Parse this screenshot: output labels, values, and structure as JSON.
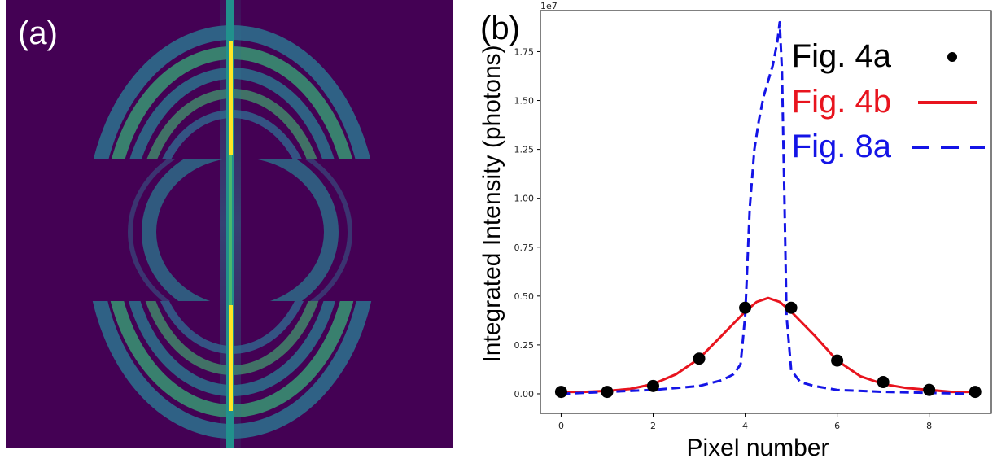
{
  "panel_a": {
    "label": "(a)",
    "colors": {
      "background": "#440154",
      "ring_mid": "#2a788e",
      "ring_bright": "#3fbc73",
      "streak": "#fde725"
    }
  },
  "panel_b": {
    "label": "(b)"
  },
  "chart_data": {
    "type": "line",
    "xlabel": "Pixel number",
    "ylabel": "Integrated Intensity (photons)",
    "y_multiplier_label": "1e7",
    "xlim": [
      -0.45,
      9.35
    ],
    "ylim": [
      -0.1,
      1.96
    ],
    "x_ticks": [
      {
        "value": 0,
        "label": "0"
      },
      {
        "value": 2,
        "label": "2"
      },
      {
        "value": 4,
        "label": "4"
      },
      {
        "value": 6,
        "label": "6"
      },
      {
        "value": 8,
        "label": "8"
      }
    ],
    "y_ticks": [
      {
        "value": 0.0,
        "label": "0.00"
      },
      {
        "value": 0.25,
        "label": "0.25"
      },
      {
        "value": 0.5,
        "label": "0.50"
      },
      {
        "value": 0.75,
        "label": "0.75"
      },
      {
        "value": 1.0,
        "label": "1.00"
      },
      {
        "value": 1.25,
        "label": "1.25"
      },
      {
        "value": 1.5,
        "label": "1.50"
      },
      {
        "value": 1.75,
        "label": "1.75"
      }
    ],
    "legend_position": "top-right",
    "series": [
      {
        "name": "Fig. 4a",
        "style": "markers",
        "color": "#000000",
        "x": [
          0,
          1,
          2,
          3,
          4,
          5,
          6,
          7,
          8,
          9
        ],
        "y": [
          0.01,
          0.01,
          0.04,
          0.18,
          0.44,
          0.44,
          0.17,
          0.06,
          0.02,
          0.01
        ]
      },
      {
        "name": "Fig. 4b",
        "style": "solid",
        "color": "#e8141e",
        "x": [
          0,
          0.5,
          1,
          1.5,
          2,
          2.5,
          3,
          3.5,
          4,
          4.25,
          4.5,
          4.75,
          5,
          5.5,
          6,
          6.5,
          7,
          7.5,
          8,
          8.5,
          9
        ],
        "y": [
          0.01,
          0.01,
          0.015,
          0.025,
          0.05,
          0.1,
          0.18,
          0.3,
          0.42,
          0.47,
          0.49,
          0.47,
          0.42,
          0.3,
          0.17,
          0.09,
          0.05,
          0.03,
          0.02,
          0.01,
          0.01
        ]
      },
      {
        "name": "Fig. 8a",
        "style": "dashed",
        "color": "#1414e6",
        "x": [
          0,
          1,
          2,
          3,
          3.5,
          3.75,
          3.9,
          4.0,
          4.1,
          4.2,
          4.3,
          4.4,
          4.5,
          4.6,
          4.7,
          4.75,
          4.8,
          4.85,
          4.9,
          5.0,
          5.2,
          5.5,
          6,
          7,
          8,
          9
        ],
        "y": [
          0.0,
          0.01,
          0.02,
          0.04,
          0.07,
          0.1,
          0.15,
          0.4,
          0.95,
          1.25,
          1.4,
          1.52,
          1.6,
          1.68,
          1.8,
          1.9,
          1.65,
          1.05,
          0.4,
          0.12,
          0.06,
          0.04,
          0.02,
          0.01,
          0.005,
          0.0
        ]
      }
    ]
  }
}
